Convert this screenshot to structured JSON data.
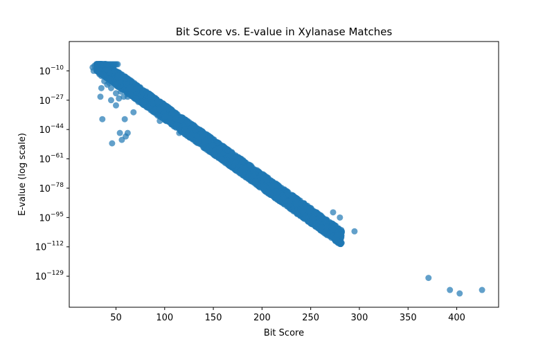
{
  "chart_data": {
    "type": "scatter",
    "title": "Bit Score vs. E-value in Xylanase Matches",
    "xlabel": "Bit Score",
    "ylabel": "E-value (log scale)",
    "xlim": [
      2,
      443
    ],
    "ylim_log10": [
      -147,
      7
    ],
    "y_scale": "log",
    "grid": false,
    "x_ticks": [
      50,
      100,
      150,
      200,
      250,
      300,
      350,
      400
    ],
    "y_ticks": [
      {
        "exp": -10,
        "base": "10",
        "sup": "−10"
      },
      {
        "exp": -27,
        "base": "10",
        "sup": "−27"
      },
      {
        "exp": -44,
        "base": "10",
        "sup": "−44"
      },
      {
        "exp": -61,
        "base": "10",
        "sup": "−61"
      },
      {
        "exp": -78,
        "base": "10",
        "sup": "−78"
      },
      {
        "exp": -95,
        "base": "10",
        "sup": "−95"
      },
      {
        "exp": -112,
        "base": "10",
        "sup": "−112"
      },
      {
        "exp": -129,
        "base": "10",
        "sup": "−129"
      }
    ],
    "point_color": "#1f77b4",
    "band_relation": "log10(E) ≈ -0.4 × bitscore + 6",
    "points": [
      {
        "x": 26,
        "log10e": -8
      },
      {
        "x": 27,
        "log10e": -10
      },
      {
        "x": 28,
        "log10e": -7
      },
      {
        "x": 30,
        "log10e": -9
      },
      {
        "x": 33,
        "log10e": -12
      },
      {
        "x": 35,
        "log10e": -13
      },
      {
        "x": 35,
        "log10e": -20
      },
      {
        "x": 34,
        "log10e": -25
      },
      {
        "x": 38,
        "log10e": -16
      },
      {
        "x": 41,
        "log10e": -18
      },
      {
        "x": 43,
        "log10e": -17
      },
      {
        "x": 45,
        "log10e": -20
      },
      {
        "x": 36,
        "log10e": -38
      },
      {
        "x": 45,
        "log10e": -27
      },
      {
        "x": 46,
        "log10e": -52
      },
      {
        "x": 50,
        "log10e": -23
      },
      {
        "x": 50,
        "log10e": -30
      },
      {
        "x": 52,
        "log10e": -14
      },
      {
        "x": 53,
        "log10e": -26
      },
      {
        "x": 54,
        "log10e": -46
      },
      {
        "x": 55,
        "log10e": -22
      },
      {
        "x": 56,
        "log10e": -50
      },
      {
        "x": 58,
        "log10e": -25
      },
      {
        "x": 59,
        "log10e": -38
      },
      {
        "x": 60,
        "log10e": -48
      },
      {
        "x": 62,
        "log10e": -46
      },
      {
        "x": 62,
        "log10e": -25
      },
      {
        "x": 64,
        "log10e": -20
      },
      {
        "x": 68,
        "log10e": -34
      },
      {
        "x": 73,
        "log10e": -28
      },
      {
        "x": 93,
        "log10e": -36
      },
      {
        "x": 95,
        "log10e": -39
      },
      {
        "x": 115,
        "log10e": -46
      },
      {
        "x": 125,
        "log10e": -48
      },
      {
        "x": 273,
        "log10e": -92
      },
      {
        "x": 280,
        "log10e": -95
      },
      {
        "x": 295,
        "log10e": -103
      },
      {
        "x": 371,
        "log10e": -130
      },
      {
        "x": 393,
        "log10e": -137
      },
      {
        "x": 403,
        "log10e": -139
      },
      {
        "x": 426,
        "log10e": -137
      }
    ]
  }
}
